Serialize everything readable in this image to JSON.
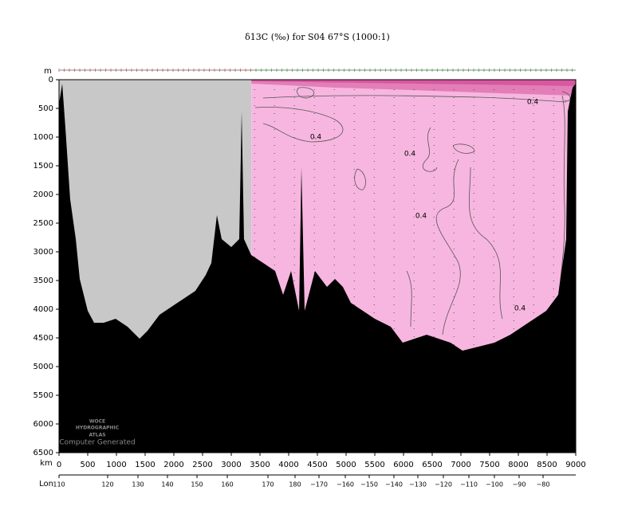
{
  "chart_data": {
    "type": "section",
    "title": "δ13C (‰) for S04 67°S (1000:1)",
    "y_label": "m",
    "x_label": "km",
    "lon_label": "Lon",
    "xlim": [
      0,
      9000
    ],
    "xticks": [
      0,
      500,
      1000,
      1500,
      2000,
      2500,
      3000,
      3500,
      4000,
      4500,
      5000,
      5500,
      6000,
      6500,
      7000,
      7500,
      8000,
      8500,
      9000
    ],
    "ylim": [
      6500,
      0
    ],
    "yticks": [
      0,
      500,
      1000,
      1500,
      2000,
      2500,
      3000,
      3500,
      4000,
      4500,
      5000,
      5500,
      6000,
      6500
    ],
    "lon_axis": {
      "labels": [
        "110",
        "120",
        "130",
        "140",
        "150",
        "160",
        "170",
        "180",
        "−170",
        "−160",
        "−150",
        "−140",
        "−130",
        "−120",
        "−110",
        "−100",
        "−90",
        "−80"
      ],
      "km": [
        0,
        847,
        1375,
        1889,
        2403,
        2931,
        3639,
        4111,
        4528,
        4986,
        5403,
        5833,
        6250,
        6694,
        7139,
        7583,
        8014,
        8431
      ]
    },
    "data_extent_km": [
      3350,
      9000
    ],
    "colors": {
      "no_data": "#c8c8c8",
      "field": "#f7b6df",
      "surface": "#d6589f",
      "bottom": "#000000"
    },
    "bathymetry": {
      "km": [
        0,
        56,
        111,
        194,
        292,
        361,
        500,
        611,
        778,
        986,
        1194,
        1403,
        1542,
        1750,
        1958,
        2167,
        2375,
        2556,
        2653,
        2750,
        2833,
        3000,
        3139,
        3181,
        3222,
        3347,
        3556,
        3764,
        3903,
        4042,
        4181,
        4222,
        4278,
        4458,
        4667,
        4806,
        4944,
        5083,
        5292,
        5500,
        5778,
        5986,
        6194,
        6403,
        6611,
        6819,
        7028,
        7306,
        7583,
        7861,
        8069,
        8278,
        8486,
        8694,
        8833,
        8861,
        8944,
        9000
      ],
      "depth": [
        417,
        69,
        833,
        2083,
        2778,
        3472,
        4028,
        4236,
        4236,
        4167,
        4306,
        4514,
        4375,
        4097,
        3958,
        3819,
        3681,
        3403,
        3194,
        2361,
        2778,
        2917,
        2778,
        556,
        2778,
        3056,
        3194,
        3333,
        3750,
        3333,
        4028,
        1528,
        4028,
        3333,
        3611,
        3472,
        3611,
        3889,
        4028,
        4167,
        4306,
        4583,
        4514,
        4444,
        4514,
        4583,
        4722,
        4653,
        4583,
        4444,
        4306,
        4167,
        4028,
        3750,
        2778,
        556,
        139,
        69
      ]
    },
    "contour_labels": [
      "0.4",
      "0.4",
      "0.4",
      "0.4",
      "0.4"
    ],
    "annotations": [
      "WOCE",
      "HYDROGRAPHIC",
      "ATLAS",
      "Computer Generated"
    ]
  }
}
